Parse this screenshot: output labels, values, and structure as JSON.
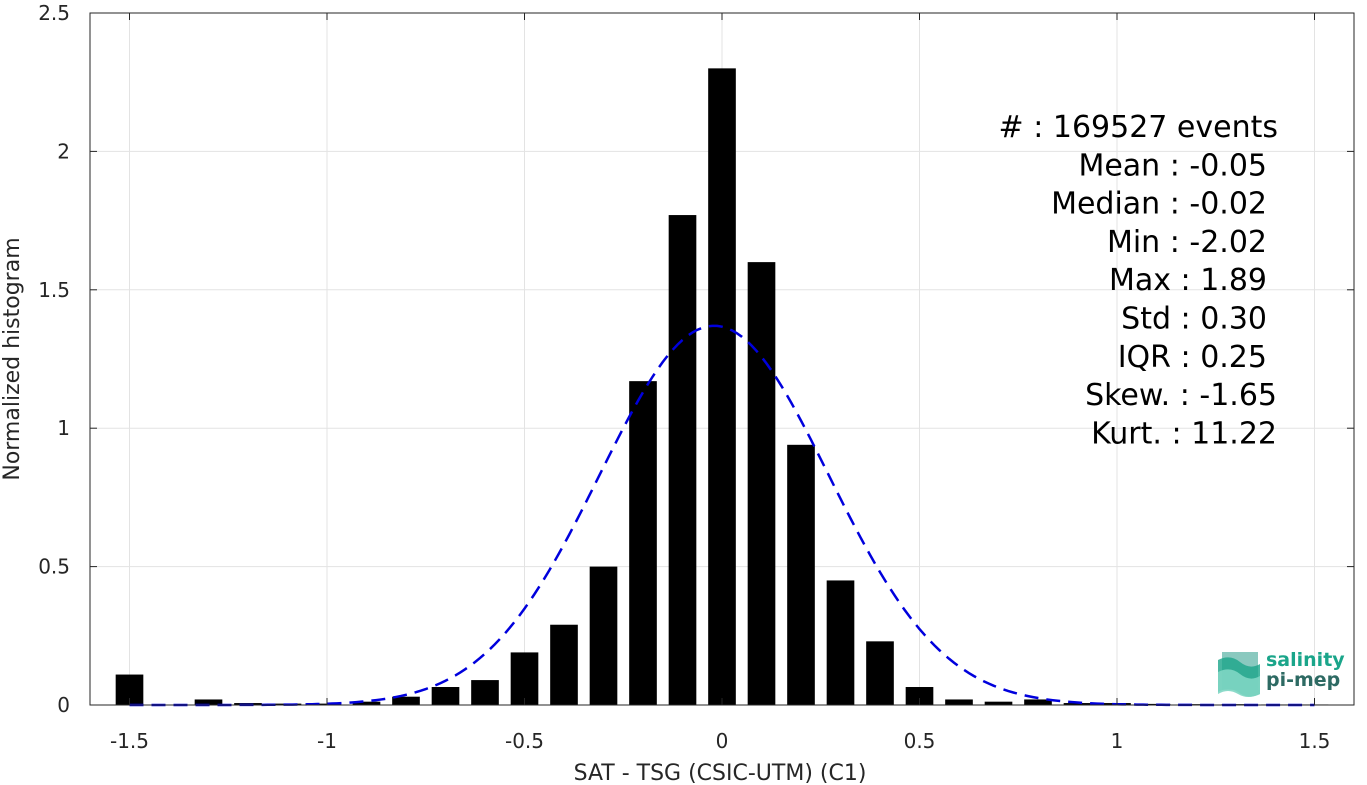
{
  "chart_data": {
    "type": "bar",
    "xlabel": "SAT - TSG (CSIC-UTM) (C1)",
    "ylabel": "Normalized histogram",
    "xlim": [
      -1.6,
      1.6
    ],
    "ylim": [
      0,
      2.5
    ],
    "grid": true,
    "xticks": [
      -1.5,
      -1,
      -0.5,
      0,
      0.5,
      1,
      1.5
    ],
    "xtick_labels": [
      "-1.5",
      "-1",
      "-0.5",
      "0",
      "0.5",
      "1",
      "1.5"
    ],
    "yticks": [
      0,
      0.5,
      1,
      1.5,
      2,
      2.5
    ],
    "ytick_labels": [
      "0",
      "0.5",
      "1",
      "1.5",
      "2",
      "2.5"
    ],
    "bar_color": "#000000",
    "bar_width": 0.07,
    "bars": [
      {
        "x": -1.5,
        "value": 0.11
      },
      {
        "x": -1.3,
        "value": 0.02
      },
      {
        "x": -1.2,
        "value": 0.007
      },
      {
        "x": -1.1,
        "value": 0.005
      },
      {
        "x": -1.0,
        "value": 0.005
      },
      {
        "x": -0.9,
        "value": 0.012
      },
      {
        "x": -0.8,
        "value": 0.03
      },
      {
        "x": -0.7,
        "value": 0.065
      },
      {
        "x": -0.6,
        "value": 0.09
      },
      {
        "x": -0.5,
        "value": 0.19
      },
      {
        "x": -0.4,
        "value": 0.29
      },
      {
        "x": -0.3,
        "value": 0.5
      },
      {
        "x": -0.2,
        "value": 1.17
      },
      {
        "x": -0.1,
        "value": 1.77
      },
      {
        "x": 0.0,
        "value": 2.3
      },
      {
        "x": 0.1,
        "value": 1.6
      },
      {
        "x": 0.2,
        "value": 0.94
      },
      {
        "x": 0.3,
        "value": 0.45
      },
      {
        "x": 0.4,
        "value": 0.23
      },
      {
        "x": 0.5,
        "value": 0.065
      },
      {
        "x": 0.6,
        "value": 0.02
      },
      {
        "x": 0.7,
        "value": 0.012
      },
      {
        "x": 0.8,
        "value": 0.02
      },
      {
        "x": 0.9,
        "value": 0.007
      },
      {
        "x": 1.0,
        "value": 0.007
      },
      {
        "x": 1.1,
        "value": 0.004
      },
      {
        "x": 1.2,
        "value": 0.003
      },
      {
        "x": 1.3,
        "value": 0.003
      },
      {
        "x": 1.4,
        "value": 0.002
      },
      {
        "x": 1.5,
        "value": 0.002
      }
    ],
    "fit_curve": {
      "type": "gaussian",
      "style": "dashed",
      "color": "#0000dd",
      "mean": -0.02,
      "peak": 1.37,
      "sigma": 0.29,
      "x_range": [
        -1.5,
        1.5
      ]
    },
    "stats": [
      "#  : 169527 events",
      "Mean : -0.05",
      "Median : -0.02",
      "Min : -2.02",
      "Max : 1.89",
      "Std : 0.30",
      "IQR : 0.25",
      "Skew. : -1.65",
      "Kurt. : 11.22"
    ]
  },
  "logo": {
    "line1": "salinity",
    "line2": "pi-mep",
    "color": "#1aa58a"
  }
}
